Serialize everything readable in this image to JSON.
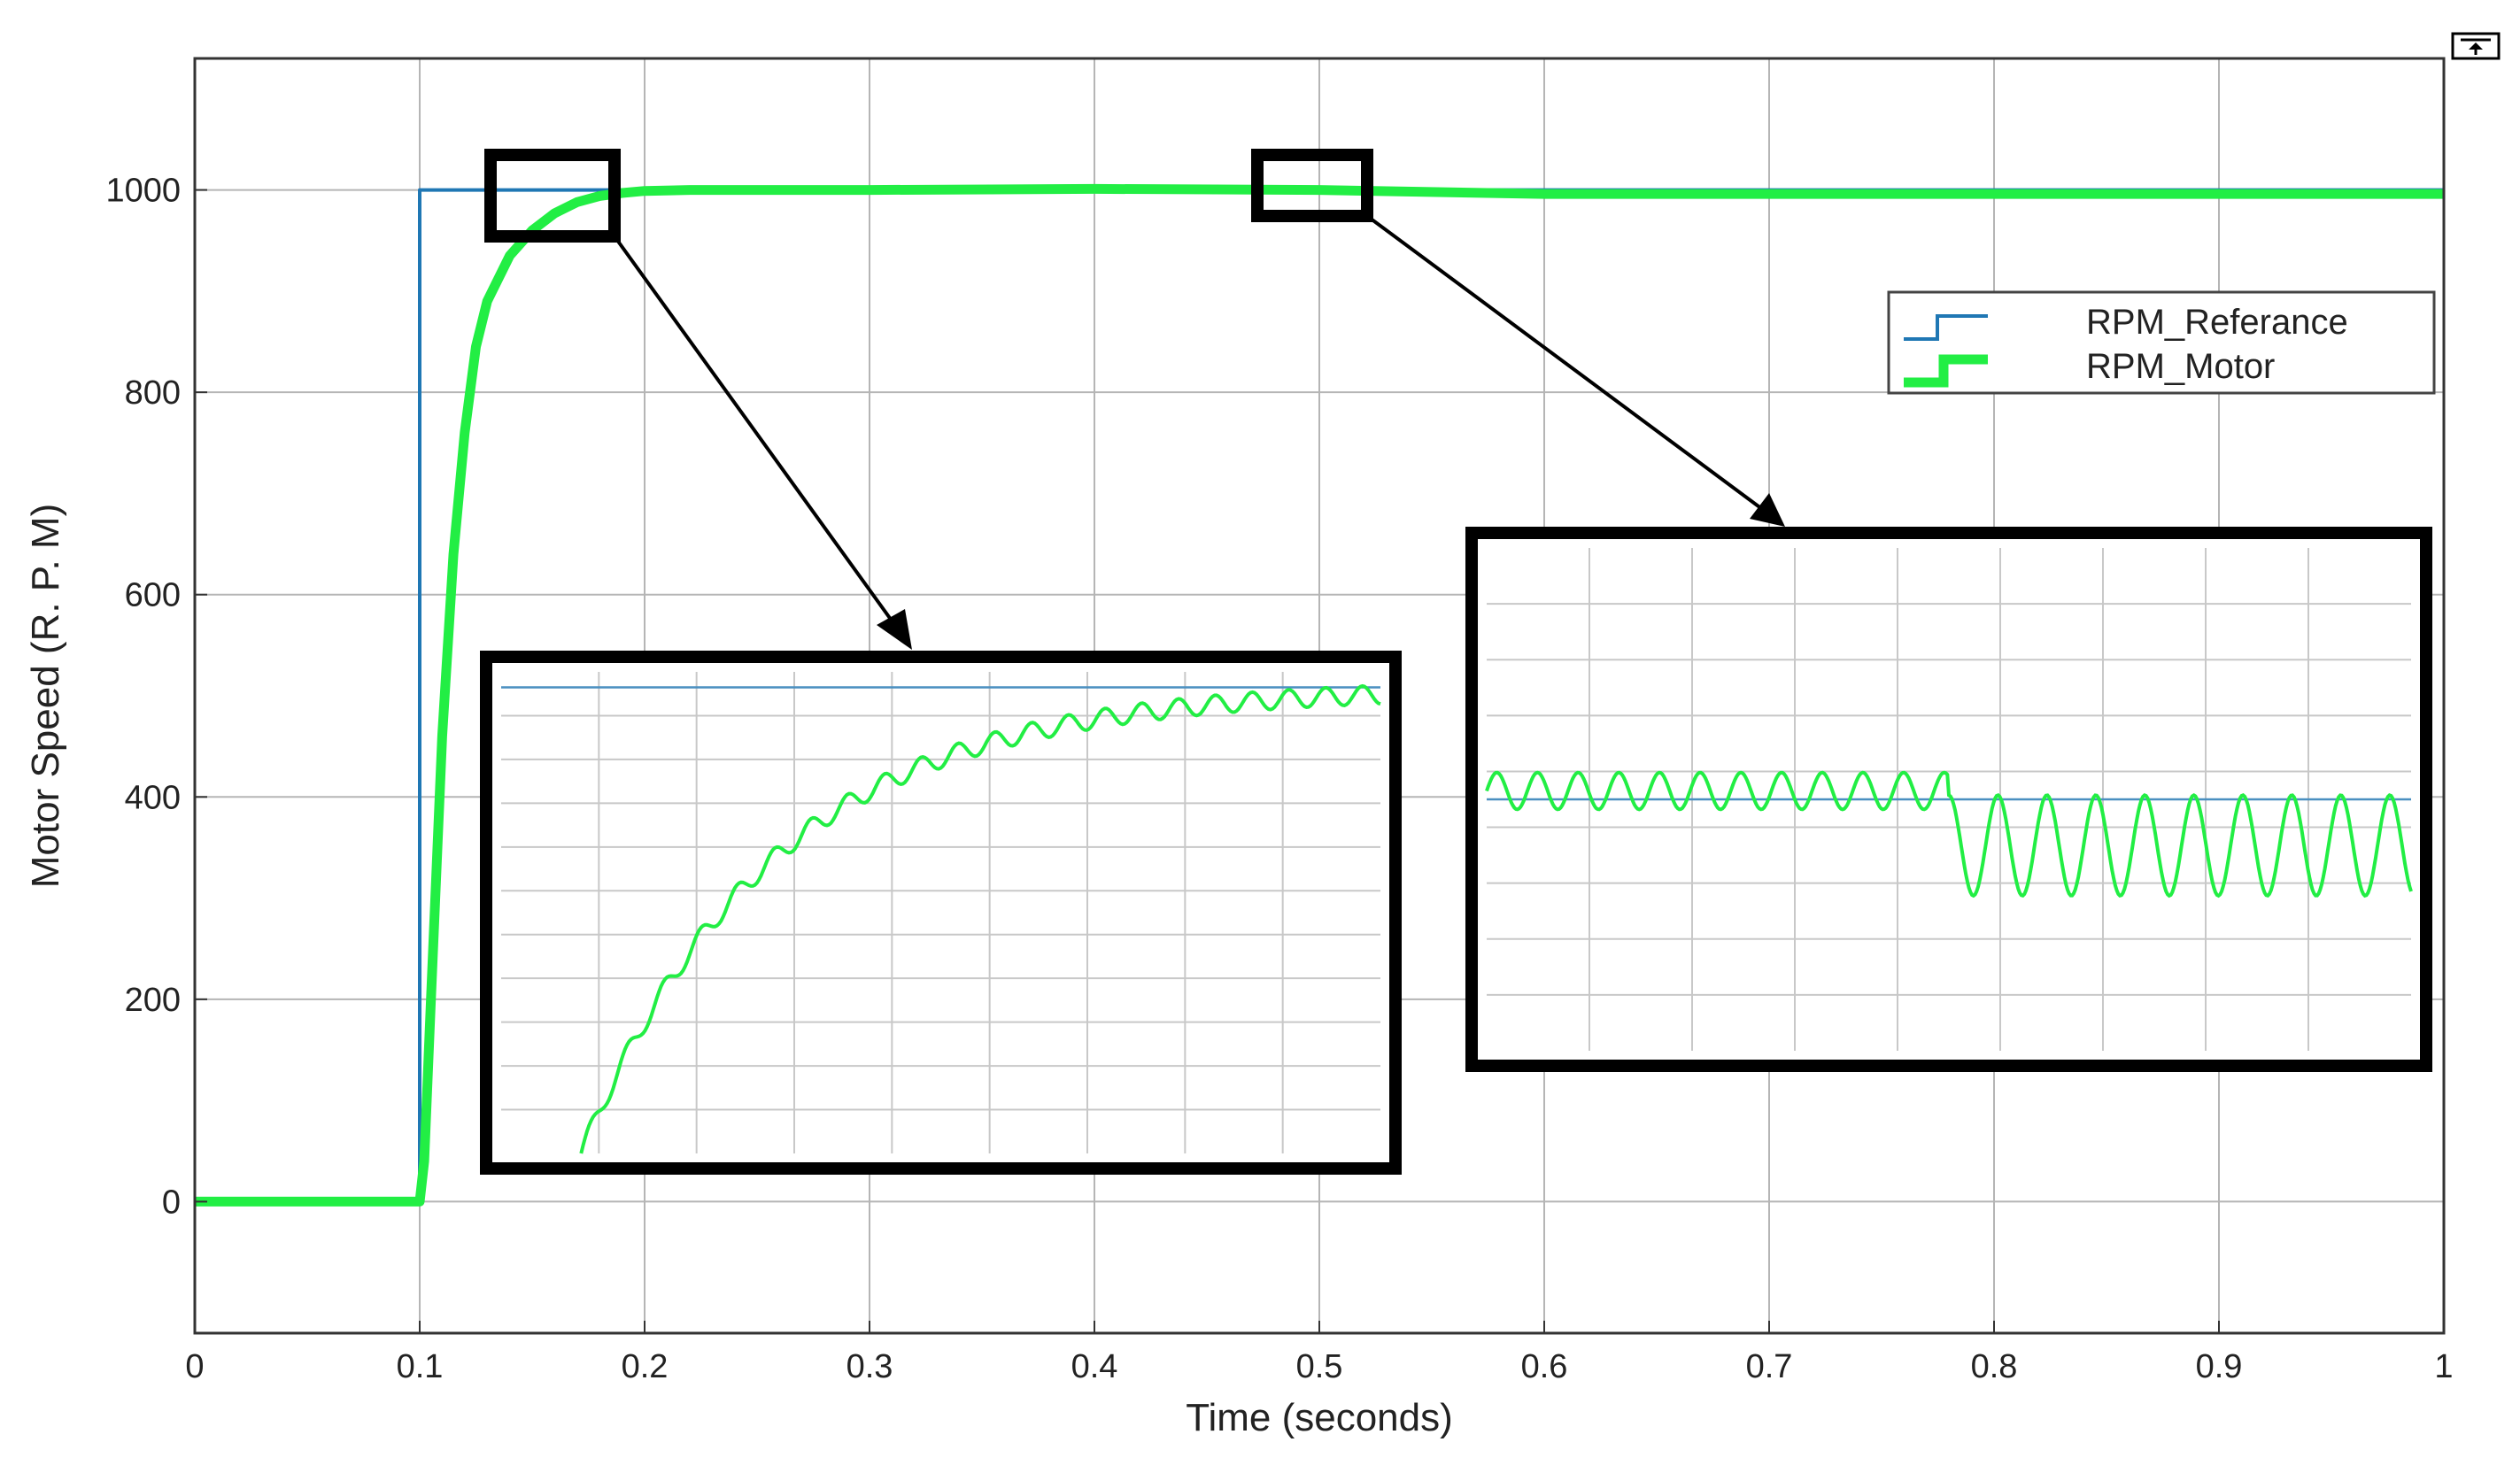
{
  "chart_data": {
    "type": "line",
    "xlabel": "Time (seconds)",
    "ylabel": "Motor Speed (R. P. M)",
    "xlim": [
      0,
      1
    ],
    "ylim": [
      -130,
      1130
    ],
    "xticks": [
      0,
      0.1,
      0.2,
      0.3,
      0.4,
      0.5,
      0.6,
      0.7,
      0.8,
      0.9,
      1
    ],
    "xtick_labels": [
      "0",
      "0.1",
      "0.2",
      "0.3",
      "0.4",
      "0.5",
      "0.6",
      "0.7",
      "0.8",
      "0.9",
      "1"
    ],
    "yticks": [
      0,
      200,
      400,
      600,
      800,
      1000
    ],
    "ytick_labels": [
      "0",
      "200",
      "400",
      "600",
      "800",
      "1000"
    ],
    "grid": true,
    "legend_position": "upper-right",
    "series": [
      {
        "name": "RPM_Referance",
        "color": "#1f77b4",
        "x": [
          0,
          0.1,
          0.1,
          1
        ],
        "y": [
          0,
          0,
          1000,
          1000
        ]
      },
      {
        "name": "RPM_Motor",
        "color": "#22ee44",
        "x": [
          0,
          0.1,
          0.102,
          0.105,
          0.11,
          0.115,
          0.12,
          0.125,
          0.13,
          0.14,
          0.15,
          0.16,
          0.17,
          0.18,
          0.19,
          0.2,
          0.22,
          0.25,
          0.3,
          0.4,
          0.5,
          0.6,
          0.7,
          0.8,
          0.9,
          1.0
        ],
        "y": [
          0,
          0,
          40,
          200,
          460,
          640,
          760,
          845,
          890,
          935,
          960,
          977,
          988,
          994,
          997,
          999,
          1000,
          1000,
          1000,
          1001,
          1000,
          996,
          996,
          996,
          996,
          996
        ]
      }
    ],
    "annotations": [
      {
        "type": "zoom-box",
        "region_x": [
          0.135,
          0.19
        ],
        "region_y": [
          970,
          1030
        ],
        "inset": "left"
      },
      {
        "type": "zoom-box",
        "region_x": [
          0.475,
          0.525
        ],
        "region_y": [
          970,
          1030
        ],
        "inset": "right"
      }
    ],
    "insets": [
      {
        "x": [
          0.135,
          0.19
        ],
        "y": [
          700,
          1010
        ],
        "reference": 1000
      },
      {
        "x": [
          0.475,
          0.525
        ],
        "y": [
          970,
          1030
        ],
        "reference": 1000
      }
    ]
  },
  "icons": {
    "top_right": "restore-icon"
  }
}
